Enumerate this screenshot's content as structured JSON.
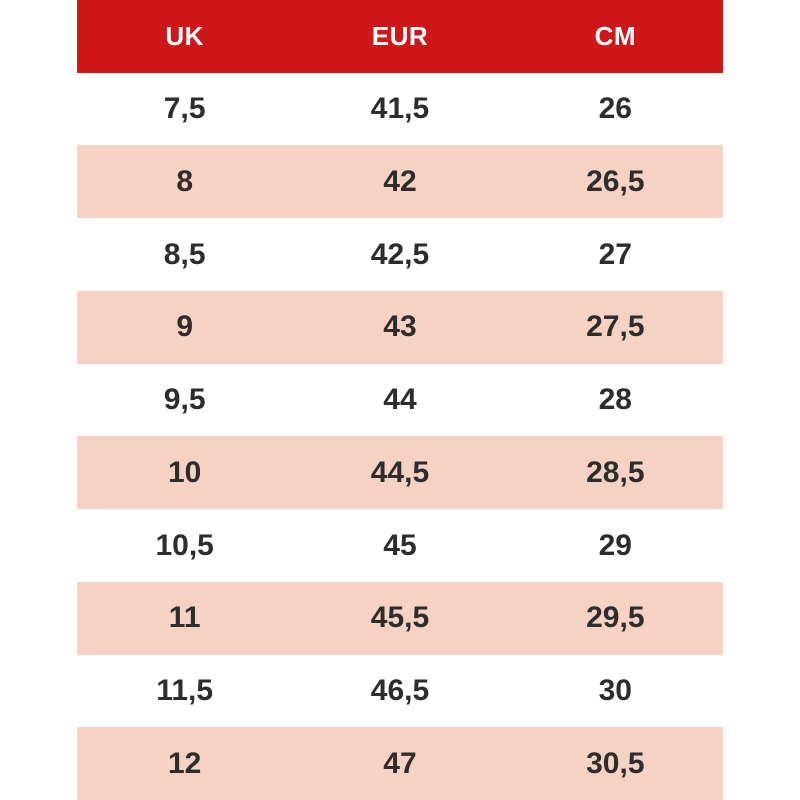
{
  "table": {
    "accent_color": "#cd1719",
    "stripe_color": "#f5d2c3",
    "header_text_color": "#ffffff",
    "body_text_color": "#2e2d2c",
    "columns": [
      "UK",
      "EUR",
      "CM"
    ],
    "rows": [
      [
        "7,5",
        "41,5",
        "26"
      ],
      [
        "8",
        "42",
        "26,5"
      ],
      [
        "8,5",
        "42,5",
        "27"
      ],
      [
        "9",
        "43",
        "27,5"
      ],
      [
        "9,5",
        "44",
        "28"
      ],
      [
        "10",
        "44,5",
        "28,5"
      ],
      [
        "10,5",
        "45",
        "29"
      ],
      [
        "11",
        "45,5",
        "29,5"
      ],
      [
        "11,5",
        "46,5",
        "30"
      ],
      [
        "12",
        "47",
        "30,5"
      ]
    ]
  }
}
